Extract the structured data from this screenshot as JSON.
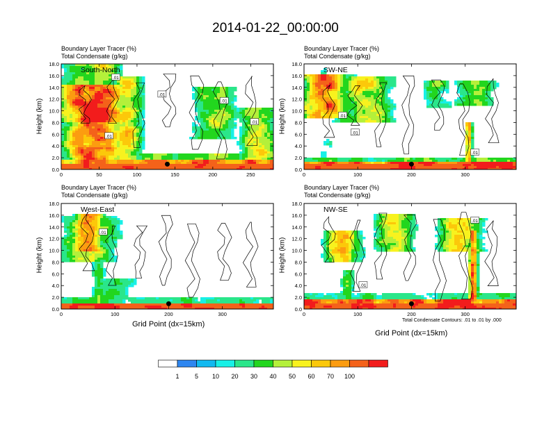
{
  "title": "2014-01-22_00:00:00",
  "panels": [
    {
      "subtitle1": "Boundary Layer Tracer   (%)",
      "subtitle2": "Total Condensate   (g/kg)",
      "name": "South-North",
      "ylabel": "Height (km)",
      "xlabel": ""
    },
    {
      "subtitle1": "Boundary Layer Tracer   (%)",
      "subtitle2": "Total Condensate   (g/kg)",
      "name": "SW-NE",
      "ylabel": "Height (km)",
      "xlabel": ""
    },
    {
      "subtitle1": "Boundary Layer Tracer   (%)",
      "subtitle2": "Total Condensate   (g/kg)",
      "name": "West-East",
      "ylabel": "Height (km)",
      "xlabel": "Grid Point (dx=15km)"
    },
    {
      "subtitle1": "Boundary Layer Tracer   (%)",
      "subtitle2": "Total Condensate   (g/kg)",
      "name": "NW-SE",
      "ylabel": "Height (km)",
      "xlabel": "Grid Point (dx=15km)"
    }
  ],
  "contour_note": "Total Condensate Contours: .01 to .01 by .000",
  "colors": {
    "levels": [
      "#ffffff",
      "#2e86f0",
      "#12b9f0",
      "#18f0e6",
      "#2ae68a",
      "#22d61e",
      "#b4f03a",
      "#f8f21e",
      "#fcc80a",
      "#fc9c10",
      "#f4621a",
      "#f21c1c"
    ]
  },
  "chart_data": [
    {
      "type": "heatmap",
      "panel": "South-North",
      "xlim": [
        0,
        280
      ],
      "ylim": [
        0,
        18
      ],
      "xticks": [
        0,
        50,
        100,
        150,
        200,
        250
      ],
      "yticks": [
        "0.0",
        "2.0",
        "4.0",
        "6.0",
        "8.0",
        "10.0",
        "12.0",
        "14.0",
        "16.0",
        "18.0"
      ],
      "marker": {
        "x": 140,
        "y": 0.9
      },
      "contour_labels": [
        {
          "x": 72,
          "y": 15.7,
          "text": ".01"
        },
        {
          "x": 133,
          "y": 12.8,
          "text": ".01"
        },
        {
          "x": 63,
          "y": 5.7,
          "text": ".01"
        },
        {
          "x": 215,
          "y": 11.7,
          "text": ".01"
        },
        {
          "x": 255,
          "y": 8.1,
          "text": ".01"
        }
      ]
    },
    {
      "type": "heatmap",
      "panel": "SW-NE",
      "xlim": [
        0,
        395
      ],
      "ylim": [
        0,
        18
      ],
      "xticks": [
        0,
        100,
        200,
        300
      ],
      "yticks": [
        "0.0",
        "2.0",
        "4.0",
        "6.0",
        "8.0",
        "10.0",
        "12.0",
        "14.0",
        "16.0",
        "18.0"
      ],
      "marker": {
        "x": 200,
        "y": 0.9
      },
      "contour_labels": [
        {
          "x": 72,
          "y": 9.2,
          "text": ".01"
        },
        {
          "x": 95,
          "y": 6.3,
          "text": ".01"
        },
        {
          "x": 318,
          "y": 2.9,
          "text": ".01"
        }
      ]
    },
    {
      "type": "heatmap",
      "panel": "West-East",
      "xlim": [
        0,
        395
      ],
      "ylim": [
        0,
        18
      ],
      "xticks": [
        0,
        100,
        200,
        300
      ],
      "yticks": [
        "0.0",
        "2.0",
        "4.0",
        "6.0",
        "8.0",
        "10.0",
        "12.0",
        "14.0",
        "16.0",
        "18.0"
      ],
      "marker": {
        "x": 200,
        "y": 0.9
      },
      "contour_labels": [
        {
          "x": 78,
          "y": 13.1,
          "text": ".01"
        }
      ]
    },
    {
      "type": "heatmap",
      "panel": "NW-SE",
      "xlim": [
        0,
        395
      ],
      "ylim": [
        0,
        18
      ],
      "xticks": [
        0,
        100,
        200,
        300
      ],
      "yticks": [
        "0.0",
        "2.0",
        "4.0",
        "6.0",
        "8.0",
        "10.0",
        "12.0",
        "14.0",
        "16.0",
        "18.0"
      ],
      "marker": {
        "x": 200,
        "y": 0.9
      },
      "contour_labels": [
        {
          "x": 110,
          "y": 4.1,
          "text": ".01"
        },
        {
          "x": 318,
          "y": 15.1,
          "text": ".01"
        }
      ]
    }
  ],
  "colorbar": {
    "labels": [
      "1",
      "5",
      "10",
      "20",
      "30",
      "40",
      "50",
      "60",
      "70",
      "100"
    ]
  }
}
